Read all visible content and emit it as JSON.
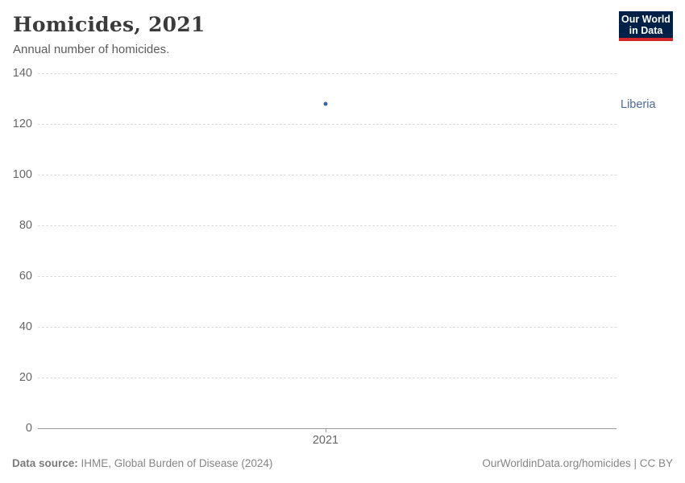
{
  "header": {
    "title": "Homicides, 2021",
    "subtitle": "Annual number of homicides.",
    "logo": {
      "line1": "Our World",
      "line2": "in Data"
    }
  },
  "chart_data": {
    "type": "scatter",
    "title": "Homicides, 2021",
    "subtitle": "Annual number of homicides.",
    "series": [
      {
        "name": "Liberia",
        "x": [
          2021
        ],
        "y": [
          128
        ]
      }
    ],
    "xlabel": "",
    "ylabel": "",
    "ylim": [
      0,
      140
    ],
    "yticks": [
      0,
      20,
      40,
      60,
      80,
      100,
      120,
      140
    ],
    "xticks": [
      "2021"
    ],
    "grid": true,
    "legend_position": "label-right-of-plot",
    "colors": {
      "point": "#3a66a8",
      "series_label": "#4c6a9c",
      "gridline": "#dcdcdc",
      "axis_line": "#999999",
      "tick_label": "#666666"
    }
  },
  "footer": {
    "datasource_label": "Data source:",
    "datasource_value": " IHME, Global Burden of Disease (2024)",
    "credit": "OurWorldinData.org/homicides | CC BY"
  }
}
